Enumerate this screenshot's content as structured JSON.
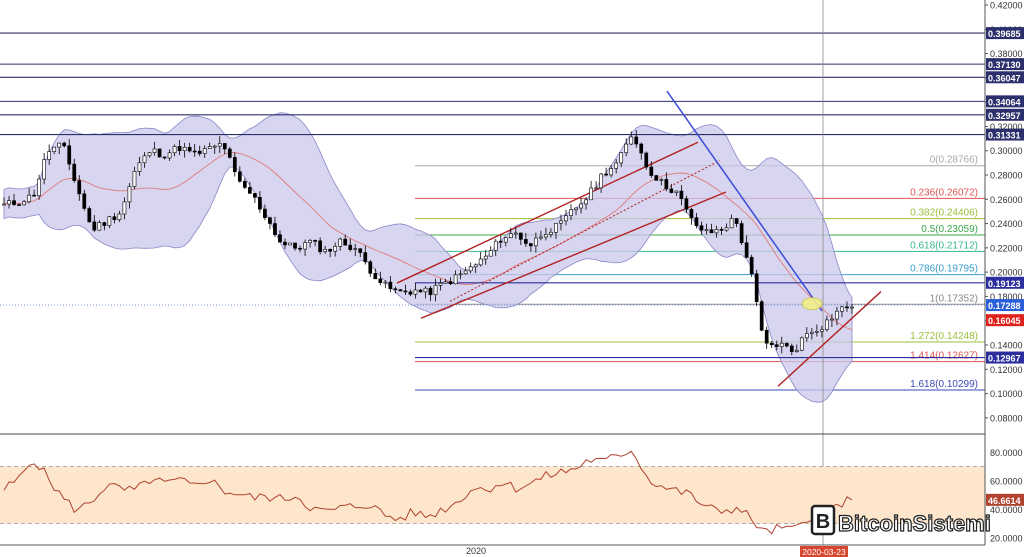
{
  "chart_data": {
    "type": "candlestick",
    "watermark": "BitcoinSistemi",
    "price_axis": {
      "ticks": [
        "0.42000",
        "0.40000",
        "0.38000",
        "0.36000",
        "0.34000",
        "0.32000",
        "0.30000",
        "0.28000",
        "0.26000",
        "0.24000",
        "0.22000",
        "0.20000",
        "0.18000",
        "0.16000",
        "0.14000",
        "0.12000",
        "0.10000",
        "0.08000"
      ],
      "ylim": [
        0.07,
        0.42
      ]
    },
    "resistance_levels": [
      {
        "label": "0.39685",
        "value": 0.39685,
        "color": "#2b2f6b"
      },
      {
        "label": "0.37130",
        "value": 0.3713,
        "color": "#2b2f6b"
      },
      {
        "label": "0.36047",
        "value": 0.36047,
        "color": "#2b2f6b"
      },
      {
        "label": "0.34064",
        "value": 0.34064,
        "color": "#2b2f6b"
      },
      {
        "label": "0.32957",
        "value": 0.32957,
        "color": "#2b2f6b"
      },
      {
        "label": "0.31331",
        "value": 0.31331,
        "color": "#2b2f6b"
      },
      {
        "label": "0.19123",
        "value": 0.19123,
        "color": "#2b2f9e"
      },
      {
        "label": "0.12967",
        "value": 0.12967,
        "color": "#2b2f9e"
      }
    ],
    "price_badges": [
      {
        "label": "0.17288",
        "value": 0.17288,
        "color": "#2b5fd9"
      },
      {
        "label": "0.16045",
        "value": 0.16045,
        "color": "#e0201b"
      }
    ],
    "fib_levels": [
      {
        "label": "0(0.28766)",
        "value": 0.28766,
        "color": "#a8a8a8"
      },
      {
        "label": "0.236(0.26072)",
        "value": 0.26072,
        "color": "#e05555"
      },
      {
        "label": "0.382(0.24406)",
        "value": 0.24406,
        "color": "#9bbf3a"
      },
      {
        "label": "0.5(0.23059)",
        "value": 0.23059,
        "color": "#3aa84a"
      },
      {
        "label": "0.618(0.21712)",
        "value": 0.21712,
        "color": "#3ab889"
      },
      {
        "label": "0.786(0.19795)",
        "value": 0.19795,
        "color": "#3a9ed0"
      },
      {
        "label": "1(0.17352)",
        "value": 0.17352,
        "color": "#8a8a8a"
      },
      {
        "label": "1.272(0.14248)",
        "value": 0.14248,
        "color": "#9bbf3a"
      },
      {
        "label": "1.414(0.12627)",
        "value": 0.12627,
        "color": "#e05555"
      },
      {
        "label": "1.618(0.10299)",
        "value": 0.10299,
        "color": "#3a4ab8"
      }
    ],
    "price_series": [
      0.255,
      0.258,
      0.263,
      0.3,
      0.305,
      0.27,
      0.235,
      0.242,
      0.25,
      0.285,
      0.3,
      0.297,
      0.303,
      0.297,
      0.301,
      0.306,
      0.274,
      0.263,
      0.244,
      0.223,
      0.22,
      0.225,
      0.217,
      0.225,
      0.22,
      0.203,
      0.189,
      0.183,
      0.185,
      0.183,
      0.19,
      0.196,
      0.204,
      0.213,
      0.228,
      0.232,
      0.222,
      0.234,
      0.238,
      0.252,
      0.263,
      0.282,
      0.29,
      0.315,
      0.286,
      0.273,
      0.266,
      0.243,
      0.232,
      0.235,
      0.244,
      0.205,
      0.139,
      0.141,
      0.135,
      0.151,
      0.156,
      0.168,
      0.173
    ],
    "rsi": {
      "ticks": [
        "80.0000",
        "60.0000",
        "40.0000",
        "20.0000"
      ],
      "ylim": [
        15,
        90
      ],
      "current_label": "46.6614",
      "overbought": 70,
      "oversold": 30,
      "series": [
        54,
        61,
        76,
        62,
        48,
        39,
        46,
        57,
        54,
        53,
        61,
        58,
        60,
        56,
        62,
        53,
        51,
        48,
        49,
        47,
        50,
        41,
        38,
        41,
        42,
        44,
        36,
        33,
        38,
        35,
        40,
        45,
        55,
        54,
        59,
        55,
        58,
        63,
        66,
        68,
        75,
        73,
        78,
        82,
        62,
        56,
        53,
        50,
        41,
        39,
        41,
        35,
        23,
        27,
        25,
        35,
        38,
        43,
        46.66
      ]
    },
    "x_axis": {
      "labels": [
        "2020"
      ],
      "cursor_date": "2020-03-23"
    }
  },
  "colors": {
    "up": "#ffffff",
    "down": "#000000",
    "bollinger_fill": "#c9c7ea",
    "basis": "#e07a7a",
    "channel": "#b32020",
    "trend": "#3b4bd8",
    "rsi_line": "#b0422f",
    "rsi_band": "#fde6cc"
  }
}
